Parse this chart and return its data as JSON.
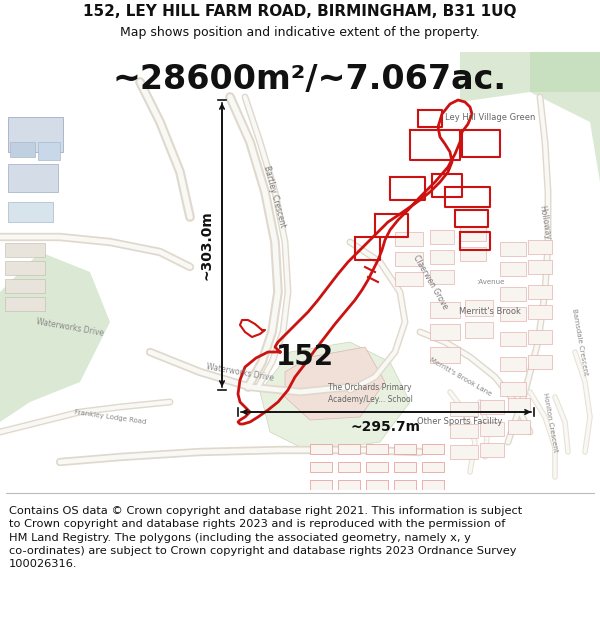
{
  "title_line1": "152, LEY HILL FARM ROAD, BIRMINGHAM, B31 1UQ",
  "title_line2": "Map shows position and indicative extent of the property.",
  "area_text": "~28600m²/~7.067ac.",
  "label_152": "152",
  "dim_vertical": "~303.0m",
  "dim_horizontal": "~295.7m",
  "footer_text": "Contains OS data © Crown copyright and database right 2021. This information is subject\nto Crown copyright and database rights 2023 and is reproduced with the permission of\nHM Land Registry. The polygons (including the associated geometry, namely x, y\nco-ordinates) are subject to Crown copyright and database rights 2023 Ordnance Survey\n100026316.",
  "map_bg": "#f5f4f1",
  "white": "#ffffff",
  "red": "#cc1111",
  "light_red": "#e88888",
  "dark": "#111111",
  "grey": "#888888",
  "light_grey": "#dddddd",
  "green1": "#dae8d4",
  "green2": "#c8dfc0",
  "blue_grey": "#ccd8e0",
  "road_fill": "#f0ede8",
  "road_edge": "#d0c8bc",
  "bld_fill": "#e8e4dc",
  "bld_edge": "#c0b8ac",
  "pink_fill": "#f0e0d8",
  "title_fs": 11,
  "subtitle_fs": 9,
  "area_fs": 24,
  "label_fs": 20,
  "dim_fs": 10,
  "footer_fs": 8.2
}
